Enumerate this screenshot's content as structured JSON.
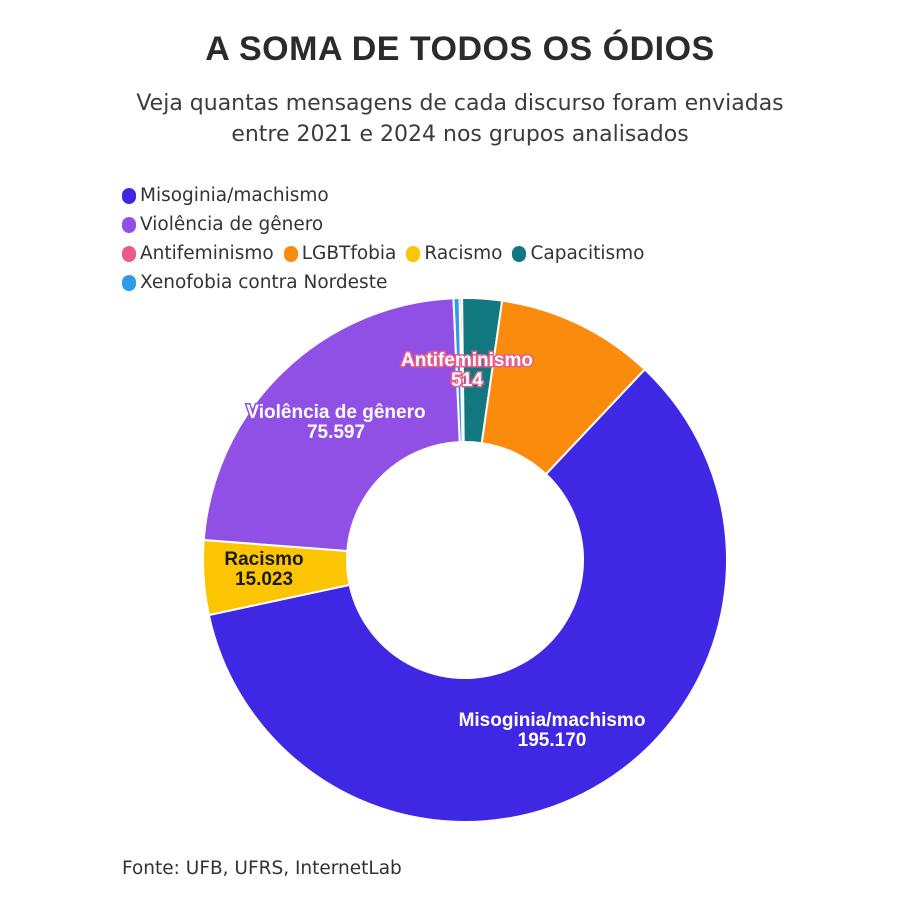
{
  "header": {
    "title": "A SOMA DE TODOS OS ÓDIOS",
    "subtitle": "Veja quantas mensagens de cada discurso foram enviadas entre 2021 e 2024 nos grupos analisados"
  },
  "footer": {
    "source": "Fonte: UFB, UFRS, InternetLab"
  },
  "chart_data": {
    "type": "pie",
    "variant": "donut",
    "title": "A SOMA DE TODOS OS ÓDIOS",
    "legend_position": "top-left",
    "categories": [
      "Misoginia/machismo",
      "Violência de gênero",
      "Antifeminismo",
      "LGBTfobia",
      "Racismo",
      "Capacitismo",
      "Xenofobia contra Nordeste"
    ],
    "values": [
      195170,
      75597,
      514,
      32000,
      15023,
      8000,
      1200
    ],
    "colors": [
      "#3f28e3",
      "#9150e5",
      "#e85c8b",
      "#fb8b0d",
      "#fbc502",
      "#117880",
      "#2d9ce8"
    ],
    "data_labels": [
      {
        "category": "Misoginia/machismo",
        "name": "Misoginia/machismo",
        "value": "195.170",
        "text_color": "#ffffff",
        "halo": "#3f28e3"
      },
      {
        "category": "Violência de gênero",
        "name": "Violência de gênero",
        "value": "75.597",
        "text_color": "#ffffff",
        "halo": "#9150e5"
      },
      {
        "category": "Antifeminismo",
        "name": "Antifeminismo",
        "value": "514",
        "text_color": "#ffffff",
        "halo": "#e85c8b"
      },
      {
        "category": "Racismo",
        "name": "Racismo",
        "value": "15.023",
        "text_color": "#1a1a1a",
        "halo": "#fbc502"
      }
    ],
    "slice_order_clockwise_from_top": [
      "Antifeminismo",
      "Capacitismo",
      "LGBTfobia",
      "Misoginia/machismo",
      "Racismo",
      "Violência de gênero",
      "Xenofobia contra Nordeste"
    ]
  }
}
